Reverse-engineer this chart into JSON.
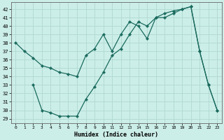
{
  "xlabel": "Humidex (Indice chaleur)",
  "bg_color": "#cceee8",
  "line_color": "#1a6b5e",
  "xlim": [
    -0.5,
    23.5
  ],
  "ylim": [
    28.5,
    42.8
  ],
  "xticks": [
    0,
    1,
    2,
    3,
    4,
    5,
    6,
    7,
    8,
    9,
    10,
    11,
    12,
    13,
    14,
    15,
    16,
    17,
    18,
    19,
    20,
    21,
    22,
    23
  ],
  "yticks": [
    29,
    30,
    31,
    32,
    33,
    34,
    35,
    36,
    37,
    38,
    39,
    40,
    41,
    42
  ],
  "line1_x": [
    0,
    1,
    2,
    3,
    4,
    5,
    6,
    7,
    8,
    9,
    10,
    11,
    12,
    13,
    14,
    15,
    16,
    17,
    18,
    19,
    20,
    21,
    22,
    23
  ],
  "line1_y": [
    38.0,
    37.0,
    36.2,
    35.3,
    35.0,
    34.5,
    34.3,
    34.0,
    36.5,
    37.3,
    39.0,
    37.0,
    39.0,
    40.5,
    40.0,
    38.5,
    41.0,
    41.5,
    41.8,
    42.0,
    42.3,
    37.0,
    33.0,
    30.0
  ],
  "line2_x": [
    2,
    3,
    4,
    5,
    6,
    7,
    8,
    9,
    10,
    11,
    12,
    13,
    14,
    15,
    16,
    17,
    18,
    19,
    20,
    21,
    22,
    23
  ],
  "line2_y": [
    33.0,
    30.0,
    29.7,
    29.3,
    29.3,
    29.3,
    31.3,
    32.8,
    34.5,
    36.5,
    37.3,
    39.0,
    40.5,
    40.0,
    41.0,
    41.0,
    41.5,
    42.0,
    42.3,
    37.0,
    33.0,
    30.0
  ]
}
